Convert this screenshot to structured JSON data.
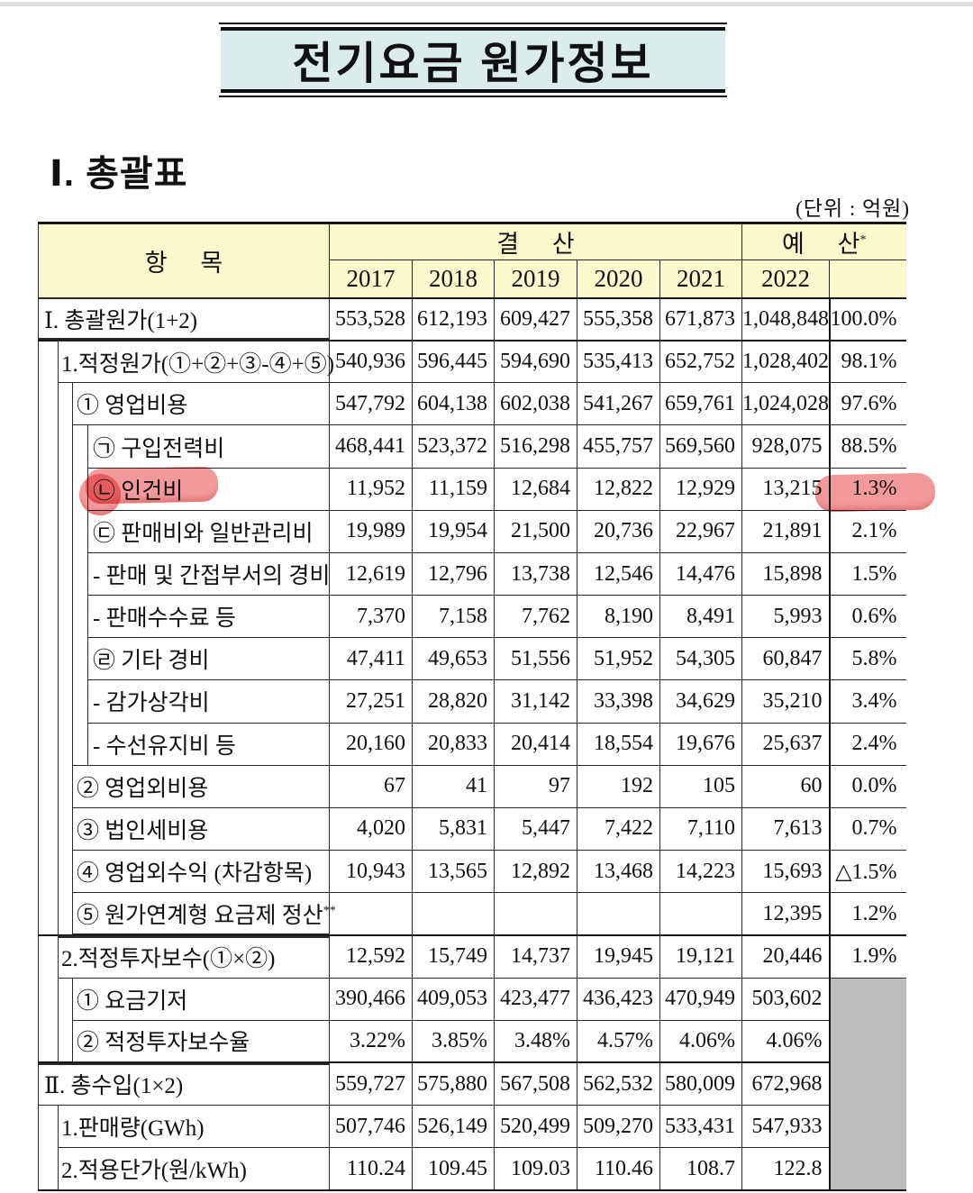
{
  "title": "전기요금 원가정보",
  "section_heading": "Ⅰ. 총괄표",
  "unit_note": "(단위 : 억원)",
  "highlight_color": "#f08a8a",
  "table": {
    "item_header": "항 목",
    "settlement_header": "결 산",
    "budget_header": "예 산",
    "budget_header_sup": "*",
    "years": [
      "2017",
      "2018",
      "2019",
      "2020",
      "2021",
      "2022"
    ],
    "rows": [
      {
        "label": "Ⅰ. 총괄원가(1+2)",
        "level": 0,
        "sepb": true,
        "values": [
          "553,528",
          "612,193",
          "609,427",
          "555,358",
          "671,873",
          "1,048,848"
        ],
        "pct": "100.0%"
      },
      {
        "label": "1.적정원가(①+②+③-④+⑤)",
        "level": 1,
        "values": [
          "540,936",
          "596,445",
          "594,690",
          "535,413",
          "652,752",
          "1,028,402"
        ],
        "pct": "98.1%"
      },
      {
        "label": "① 영업비용",
        "level": 2,
        "values": [
          "547,792",
          "604,138",
          "602,038",
          "541,267",
          "659,761",
          "1,024,028"
        ],
        "pct": "97.6%"
      },
      {
        "label": "㉠ 구입전력비",
        "level": 3,
        "values": [
          "468,441",
          "523,372",
          "516,298",
          "455,757",
          "569,560",
          "928,075"
        ],
        "pct": "88.5%"
      },
      {
        "label": "㉡ 인건비",
        "level": 3,
        "highlight": true,
        "values": [
          "11,952",
          "11,159",
          "12,684",
          "12,822",
          "12,929",
          "13,215"
        ],
        "pct": "1.3%"
      },
      {
        "label": "㉢ 판매비와 일반관리비",
        "level": 3,
        "values": [
          "19,989",
          "19,954",
          "21,500",
          "20,736",
          "22,967",
          "21,891"
        ],
        "pct": "2.1%"
      },
      {
        "label": "- 판매 및 간접부서의 경비",
        "level": 3,
        "values": [
          "12,619",
          "12,796",
          "13,738",
          "12,546",
          "14,476",
          "15,898"
        ],
        "pct": "1.5%"
      },
      {
        "label": "- 판매수수료 등",
        "level": 3,
        "values": [
          "7,370",
          "7,158",
          "7,762",
          "8,190",
          "8,491",
          "5,993"
        ],
        "pct": "0.6%"
      },
      {
        "label": "㉣ 기타 경비",
        "level": 3,
        "values": [
          "47,411",
          "49,653",
          "51,556",
          "51,952",
          "54,305",
          "60,847"
        ],
        "pct": "5.8%"
      },
      {
        "label": "- 감가상각비",
        "level": 3,
        "values": [
          "27,251",
          "28,820",
          "31,142",
          "33,398",
          "34,629",
          "35,210"
        ],
        "pct": "3.4%"
      },
      {
        "label": "- 수선유지비 등",
        "level": 3,
        "values": [
          "20,160",
          "20,833",
          "20,414",
          "18,554",
          "19,676",
          "25,637"
        ],
        "pct": "2.4%"
      },
      {
        "label": "② 영업외비용",
        "level": 2,
        "values": [
          "67",
          "41",
          "97",
          "192",
          "105",
          "60"
        ],
        "pct": "0.0%"
      },
      {
        "label": "③ 법인세비용",
        "level": 2,
        "values": [
          "4,020",
          "5,831",
          "5,447",
          "7,422",
          "7,110",
          "7,613"
        ],
        "pct": "0.7%"
      },
      {
        "label": "④ 영업외수익 (차감항목)",
        "level": 2,
        "values": [
          "10,943",
          "13,565",
          "12,892",
          "13,468",
          "14,223",
          "15,693"
        ],
        "pct": "△1.5%"
      },
      {
        "label": "⑤ 원가연계형 요금제 정산",
        "sup": "**",
        "level": 2,
        "values": [
          "",
          "",
          "",
          "",
          "",
          "12,395"
        ],
        "pct": "1.2%"
      },
      {
        "label": "2.적정투자보수(①×②)",
        "level": 1,
        "sep": true,
        "values": [
          "12,592",
          "15,749",
          "14,737",
          "19,945",
          "19,121",
          "20,446"
        ],
        "pct": "1.9%"
      },
      {
        "label": "① 요금기저",
        "level": 2,
        "gray_start": true,
        "values": [
          "390,466",
          "409,053",
          "423,477",
          "436,423",
          "470,949",
          "503,602"
        ]
      },
      {
        "label": "② 적정투자보수율",
        "level": 2,
        "values": [
          "3.22%",
          "3.85%",
          "3.48%",
          "4.57%",
          "4.06%",
          "4.06%"
        ]
      },
      {
        "label": "Ⅱ. 총수입(1×2)",
        "level": 0,
        "sep": true,
        "values": [
          "559,727",
          "575,880",
          "567,508",
          "562,532",
          "580,009",
          "672,968"
        ]
      },
      {
        "label": "1.판매량(GWh)",
        "level": 1,
        "values": [
          "507,746",
          "526,149",
          "520,499",
          "509,270",
          "533,431",
          "547,933"
        ]
      },
      {
        "label": "2.적용단가(원/kWh)",
        "level": 1,
        "values": [
          "110.24",
          "109.45",
          "109.03",
          "110.46",
          "108.7",
          "122.8"
        ]
      }
    ]
  }
}
